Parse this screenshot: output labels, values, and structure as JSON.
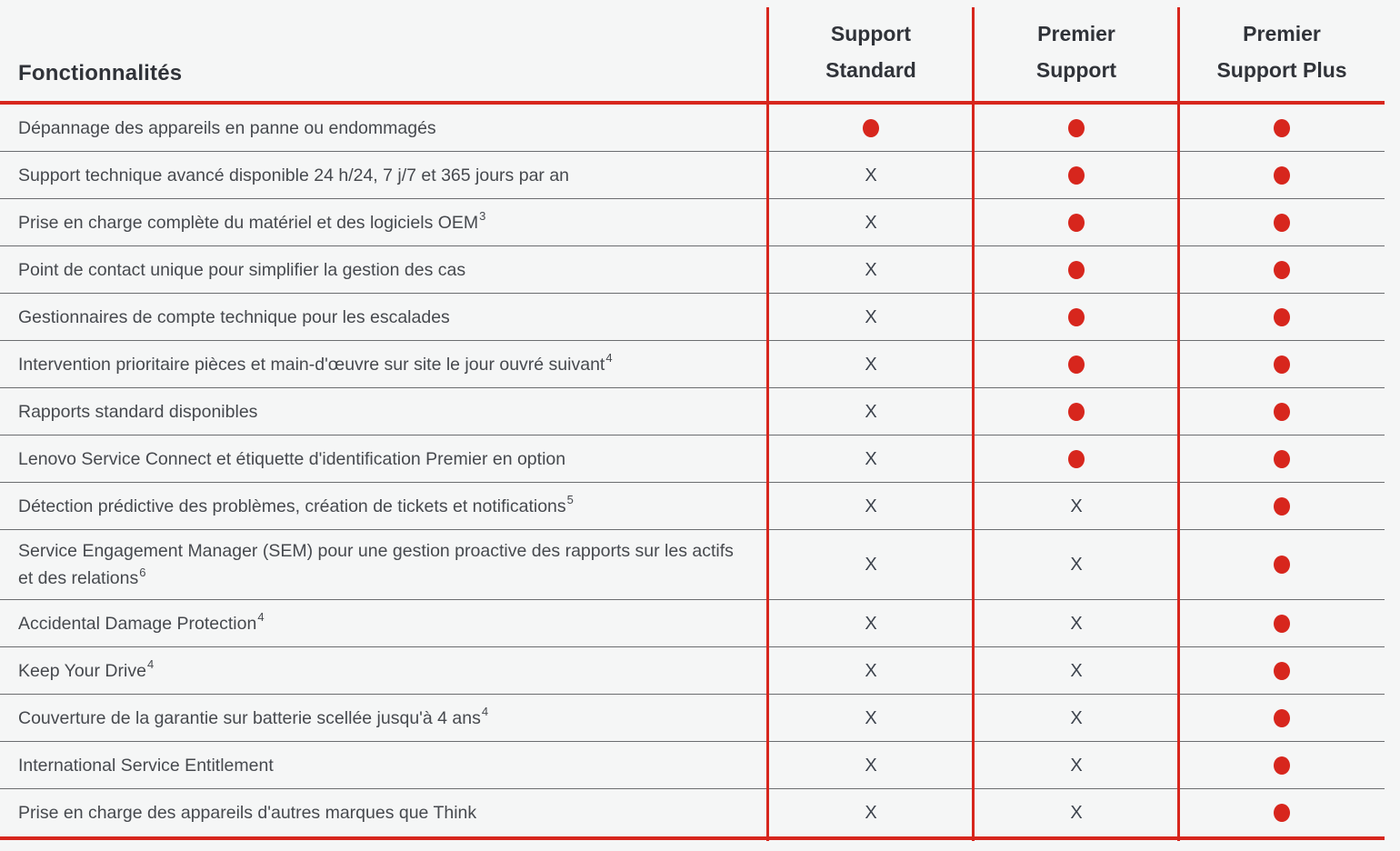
{
  "table": {
    "feature_header": "Fonctionnalités",
    "columns": [
      "Support\nStandard",
      "Premier\nSupport",
      "Premier\nSupport Plus"
    ],
    "marks": {
      "included_name": "included-dot",
      "not_included_name": "not-included-x",
      "not_included_glyph": "X"
    },
    "colors": {
      "accent_red": "#d7261d",
      "header_text": "#303339",
      "body_text": "#46494e",
      "x_mark": "#3d434d",
      "row_divider": "#6b6d70",
      "background": "#f5f6f6"
    },
    "rows": [
      {
        "feature": "Dépannage des appareils en panne ou endommagés",
        "sup": "",
        "values": [
          "dot",
          "dot",
          "dot"
        ]
      },
      {
        "feature": "Support technique avancé disponible 24 h/24, 7 j/7 et 365 jours par an",
        "sup": "",
        "values": [
          "x",
          "dot",
          "dot"
        ]
      },
      {
        "feature": "Prise en charge complète du matériel et des logiciels OEM",
        "sup": "3",
        "values": [
          "x",
          "dot",
          "dot"
        ]
      },
      {
        "feature": "Point de contact unique pour simplifier la gestion des cas",
        "sup": "",
        "values": [
          "x",
          "dot",
          "dot"
        ]
      },
      {
        "feature": "Gestionnaires de compte technique pour les escalades",
        "sup": "",
        "values": [
          "x",
          "dot",
          "dot"
        ]
      },
      {
        "feature": "Intervention prioritaire pièces et main-d'œuvre sur site le jour ouvré suivant",
        "sup": "4",
        "values": [
          "x",
          "dot",
          "dot"
        ]
      },
      {
        "feature": "Rapports standard disponibles",
        "sup": "",
        "values": [
          "x",
          "dot",
          "dot"
        ]
      },
      {
        "feature": "Lenovo Service Connect et étiquette d'identification Premier en option",
        "sup": "",
        "values": [
          "x",
          "dot",
          "dot"
        ]
      },
      {
        "feature": "Détection prédictive des problèmes, création de tickets et notifications",
        "sup": "5",
        "values": [
          "x",
          "x",
          "dot"
        ]
      },
      {
        "feature": "Service Engagement Manager (SEM) pour une gestion proactive des rapports sur les actifs et des relations",
        "sup": "6",
        "values": [
          "x",
          "x",
          "dot"
        ]
      },
      {
        "feature": "Accidental Damage Protection",
        "sup": "4",
        "values": [
          "x",
          "x",
          "dot"
        ]
      },
      {
        "feature": "Keep Your Drive",
        "sup": "4",
        "values": [
          "x",
          "x",
          "dot"
        ]
      },
      {
        "feature": "Couverture de la garantie sur batterie scellée jusqu'à 4 ans",
        "sup": "4",
        "values": [
          "x",
          "x",
          "dot"
        ]
      },
      {
        "feature": "International Service Entitlement",
        "sup": "",
        "values": [
          "x",
          "x",
          "dot"
        ]
      },
      {
        "feature": "Prise en charge des appareils d'autres marques que Think",
        "sup": "",
        "values": [
          "x",
          "x",
          "dot"
        ]
      }
    ]
  }
}
